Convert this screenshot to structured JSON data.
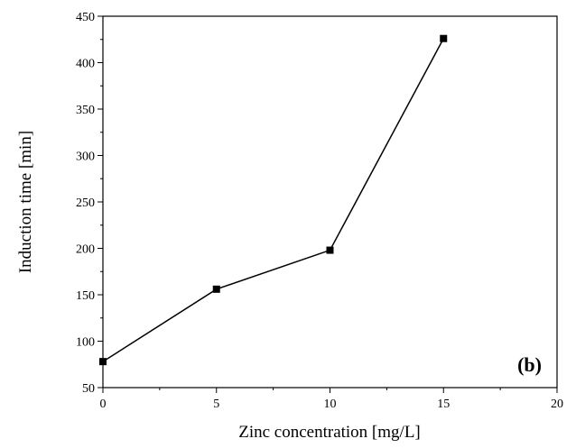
{
  "chart_data": {
    "type": "line",
    "title": "",
    "xlabel": "Zinc concentration [mg/L]",
    "ylabel": "Induction time [min]",
    "panel_label": "(b)",
    "xlim": [
      0,
      20
    ],
    "ylim": [
      50,
      450
    ],
    "x_ticks": [
      "0",
      "5",
      "10",
      "15",
      "20"
    ],
    "y_ticks": [
      "50",
      "100",
      "150",
      "200",
      "250",
      "300",
      "350",
      "400",
      "450"
    ],
    "grid": false,
    "legend": "none",
    "series": [
      {
        "x": [
          0,
          5,
          10,
          15
        ],
        "y": [
          78,
          156,
          198,
          426
        ],
        "marker": "square",
        "color": "#000000"
      }
    ]
  }
}
